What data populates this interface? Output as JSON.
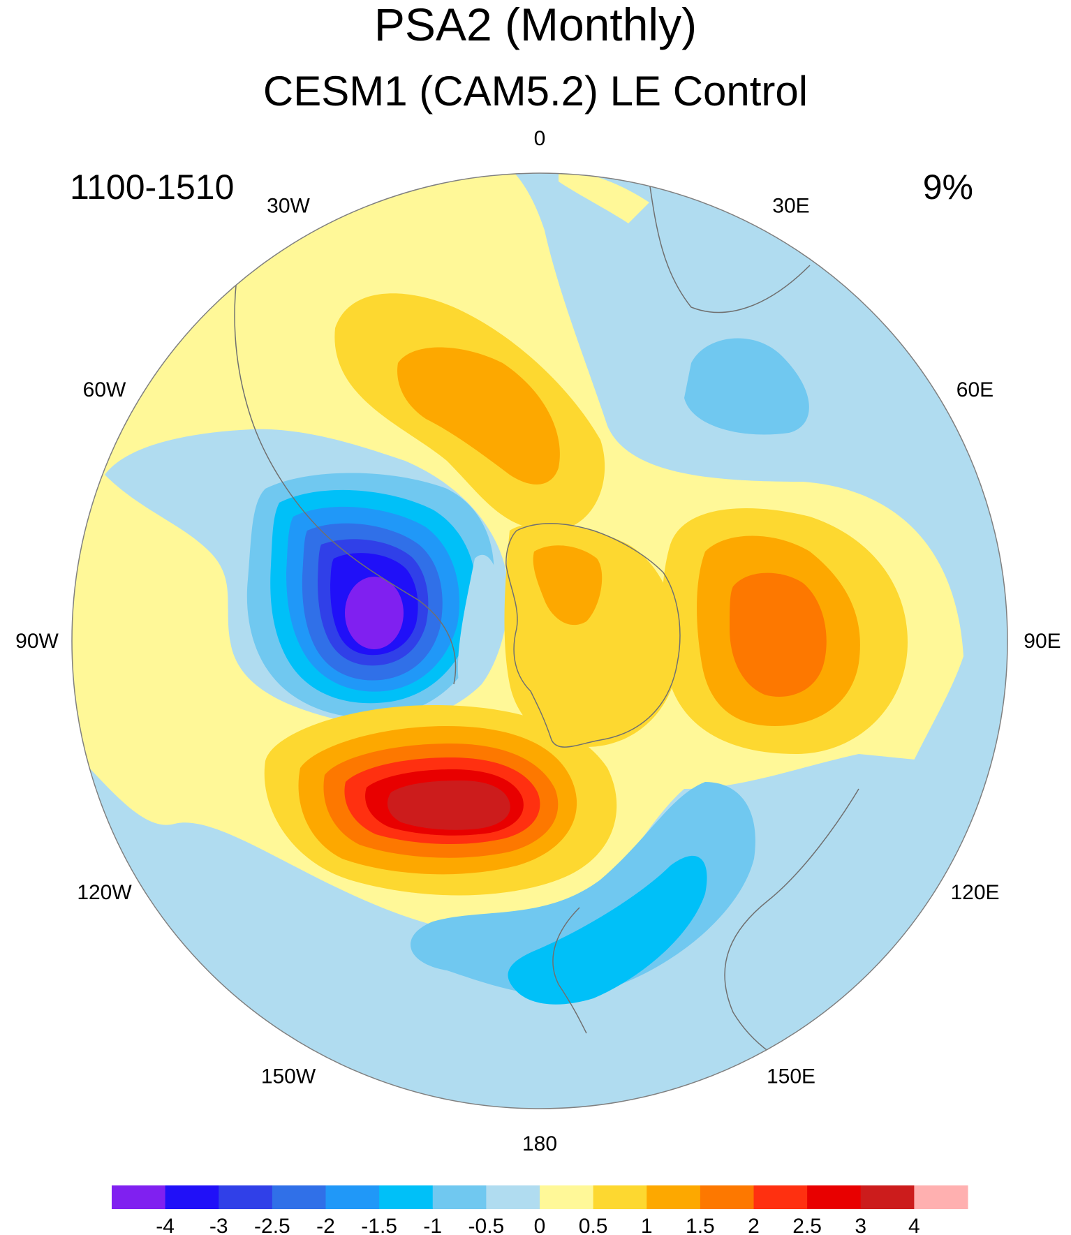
{
  "title": "PSA2 (Monthly)",
  "subtitle": "CESM1 (CAM5.2) LE Control",
  "period": "1100-1510",
  "variance_explained": "9%",
  "longitude_labels": [
    {
      "lon": 0,
      "text": "0"
    },
    {
      "lon": 30,
      "text": "30E"
    },
    {
      "lon": 60,
      "text": "60E"
    },
    {
      "lon": 90,
      "text": "90E"
    },
    {
      "lon": 120,
      "text": "120E"
    },
    {
      "lon": 150,
      "text": "150E"
    },
    {
      "lon": 180,
      "text": "180"
    },
    {
      "lon": -150,
      "text": "150W"
    },
    {
      "lon": -120,
      "text": "120W"
    },
    {
      "lon": -90,
      "text": "90W"
    },
    {
      "lon": -60,
      "text": "60W"
    },
    {
      "lon": -30,
      "text": "30W"
    }
  ],
  "colorbar": {
    "colors": [
      "#8020f0",
      "#2010f8",
      "#3040e8",
      "#3070e8",
      "#2098f8",
      "#00c0f8",
      "#70c8f0",
      "#b0dcf0",
      "#fff898",
      "#fdd830",
      "#fda800",
      "#fd7800",
      "#ff3010",
      "#e80000",
      "#cc1c1c",
      "#ffb0b0"
    ],
    "labels": [
      "-4",
      "-3",
      "-2.5",
      "-2",
      "-1.5",
      "-1",
      "-0.5",
      "0",
      "0.5",
      "1",
      "1.5",
      "2",
      "2.5",
      "3",
      "4"
    ]
  },
  "map": {
    "projection": "south polar stereographic",
    "field_colors": {
      "neg_weak": "#b0dcf0",
      "neg_1": "#70c8f0",
      "neg_2": "#00c0f8",
      "neg_3": "#2098f8",
      "neg_4": "#3070e8",
      "neg_5": "#3040e8",
      "neg_6": "#2010f8",
      "neg_7": "#8020f0",
      "pos_weak": "#fff898",
      "pos_1": "#fdd830",
      "pos_2": "#fda800",
      "pos_3": "#fd7800",
      "pos_4": "#ff3010",
      "pos_5": "#e80000",
      "pos_6": "#cc1c1c"
    }
  }
}
